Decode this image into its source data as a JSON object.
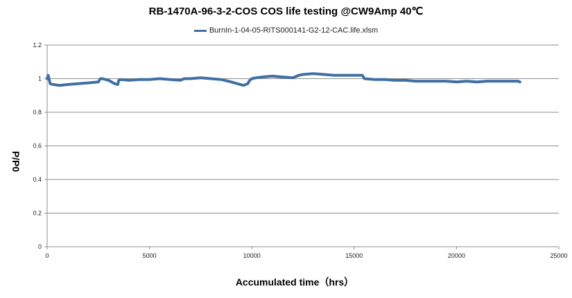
{
  "chart_data": {
    "type": "line",
    "title": "RB-1470A-96-3-2-COS   COS life testing  @CW9Amp  40℃",
    "xlabel": "Accumulated time（hrs）",
    "ylabel": "P/P0",
    "xlim": [
      0,
      25000
    ],
    "ylim": [
      0,
      1.2
    ],
    "x_ticks": [
      0,
      5000,
      10000,
      15000,
      20000,
      25000
    ],
    "y_ticks": [
      0,
      0.2,
      0.4,
      0.6,
      0.8,
      1,
      1.2
    ],
    "grid": "horizontal",
    "legend_position": "top",
    "series": [
      {
        "name": "BurnIn-1-04-05-RITS000141-G2-12-CAC.life.xlsm",
        "color": "#3f6fa3",
        "x": [
          0,
          50,
          150,
          300,
          600,
          1000,
          1500,
          2000,
          2500,
          2600,
          2700,
          3000,
          3300,
          3450,
          3500,
          3600,
          4000,
          4500,
          5000,
          5500,
          6000,
          6500,
          6700,
          7000,
          7500,
          8000,
          8500,
          9000,
          9300,
          9600,
          9800,
          9900,
          10000,
          10200,
          10500,
          11000,
          11500,
          12000,
          12300,
          12500,
          13000,
          13500,
          14000,
          14500,
          15000,
          15400,
          15500,
          16000,
          16500,
          17000,
          17500,
          18000,
          18500,
          19000,
          19500,
          20000,
          20500,
          21000,
          21500,
          22000,
          22500,
          23000,
          23100
        ],
        "y": [
          1.0,
          1.02,
          0.97,
          0.965,
          0.96,
          0.965,
          0.97,
          0.975,
          0.98,
          1.0,
          1.0,
          0.99,
          0.97,
          0.965,
          0.99,
          0.995,
          0.99,
          0.995,
          0.995,
          1.0,
          0.995,
          0.99,
          1.0,
          1.0,
          1.005,
          1.0,
          0.995,
          0.98,
          0.97,
          0.96,
          0.97,
          0.99,
          1.0,
          1.005,
          1.01,
          1.015,
          1.01,
          1.005,
          1.02,
          1.025,
          1.03,
          1.025,
          1.02,
          1.02,
          1.02,
          1.02,
          1.0,
          0.995,
          0.995,
          0.99,
          0.99,
          0.985,
          0.985,
          0.985,
          0.985,
          0.98,
          0.985,
          0.98,
          0.985,
          0.985,
          0.985,
          0.985,
          0.98
        ]
      }
    ]
  }
}
